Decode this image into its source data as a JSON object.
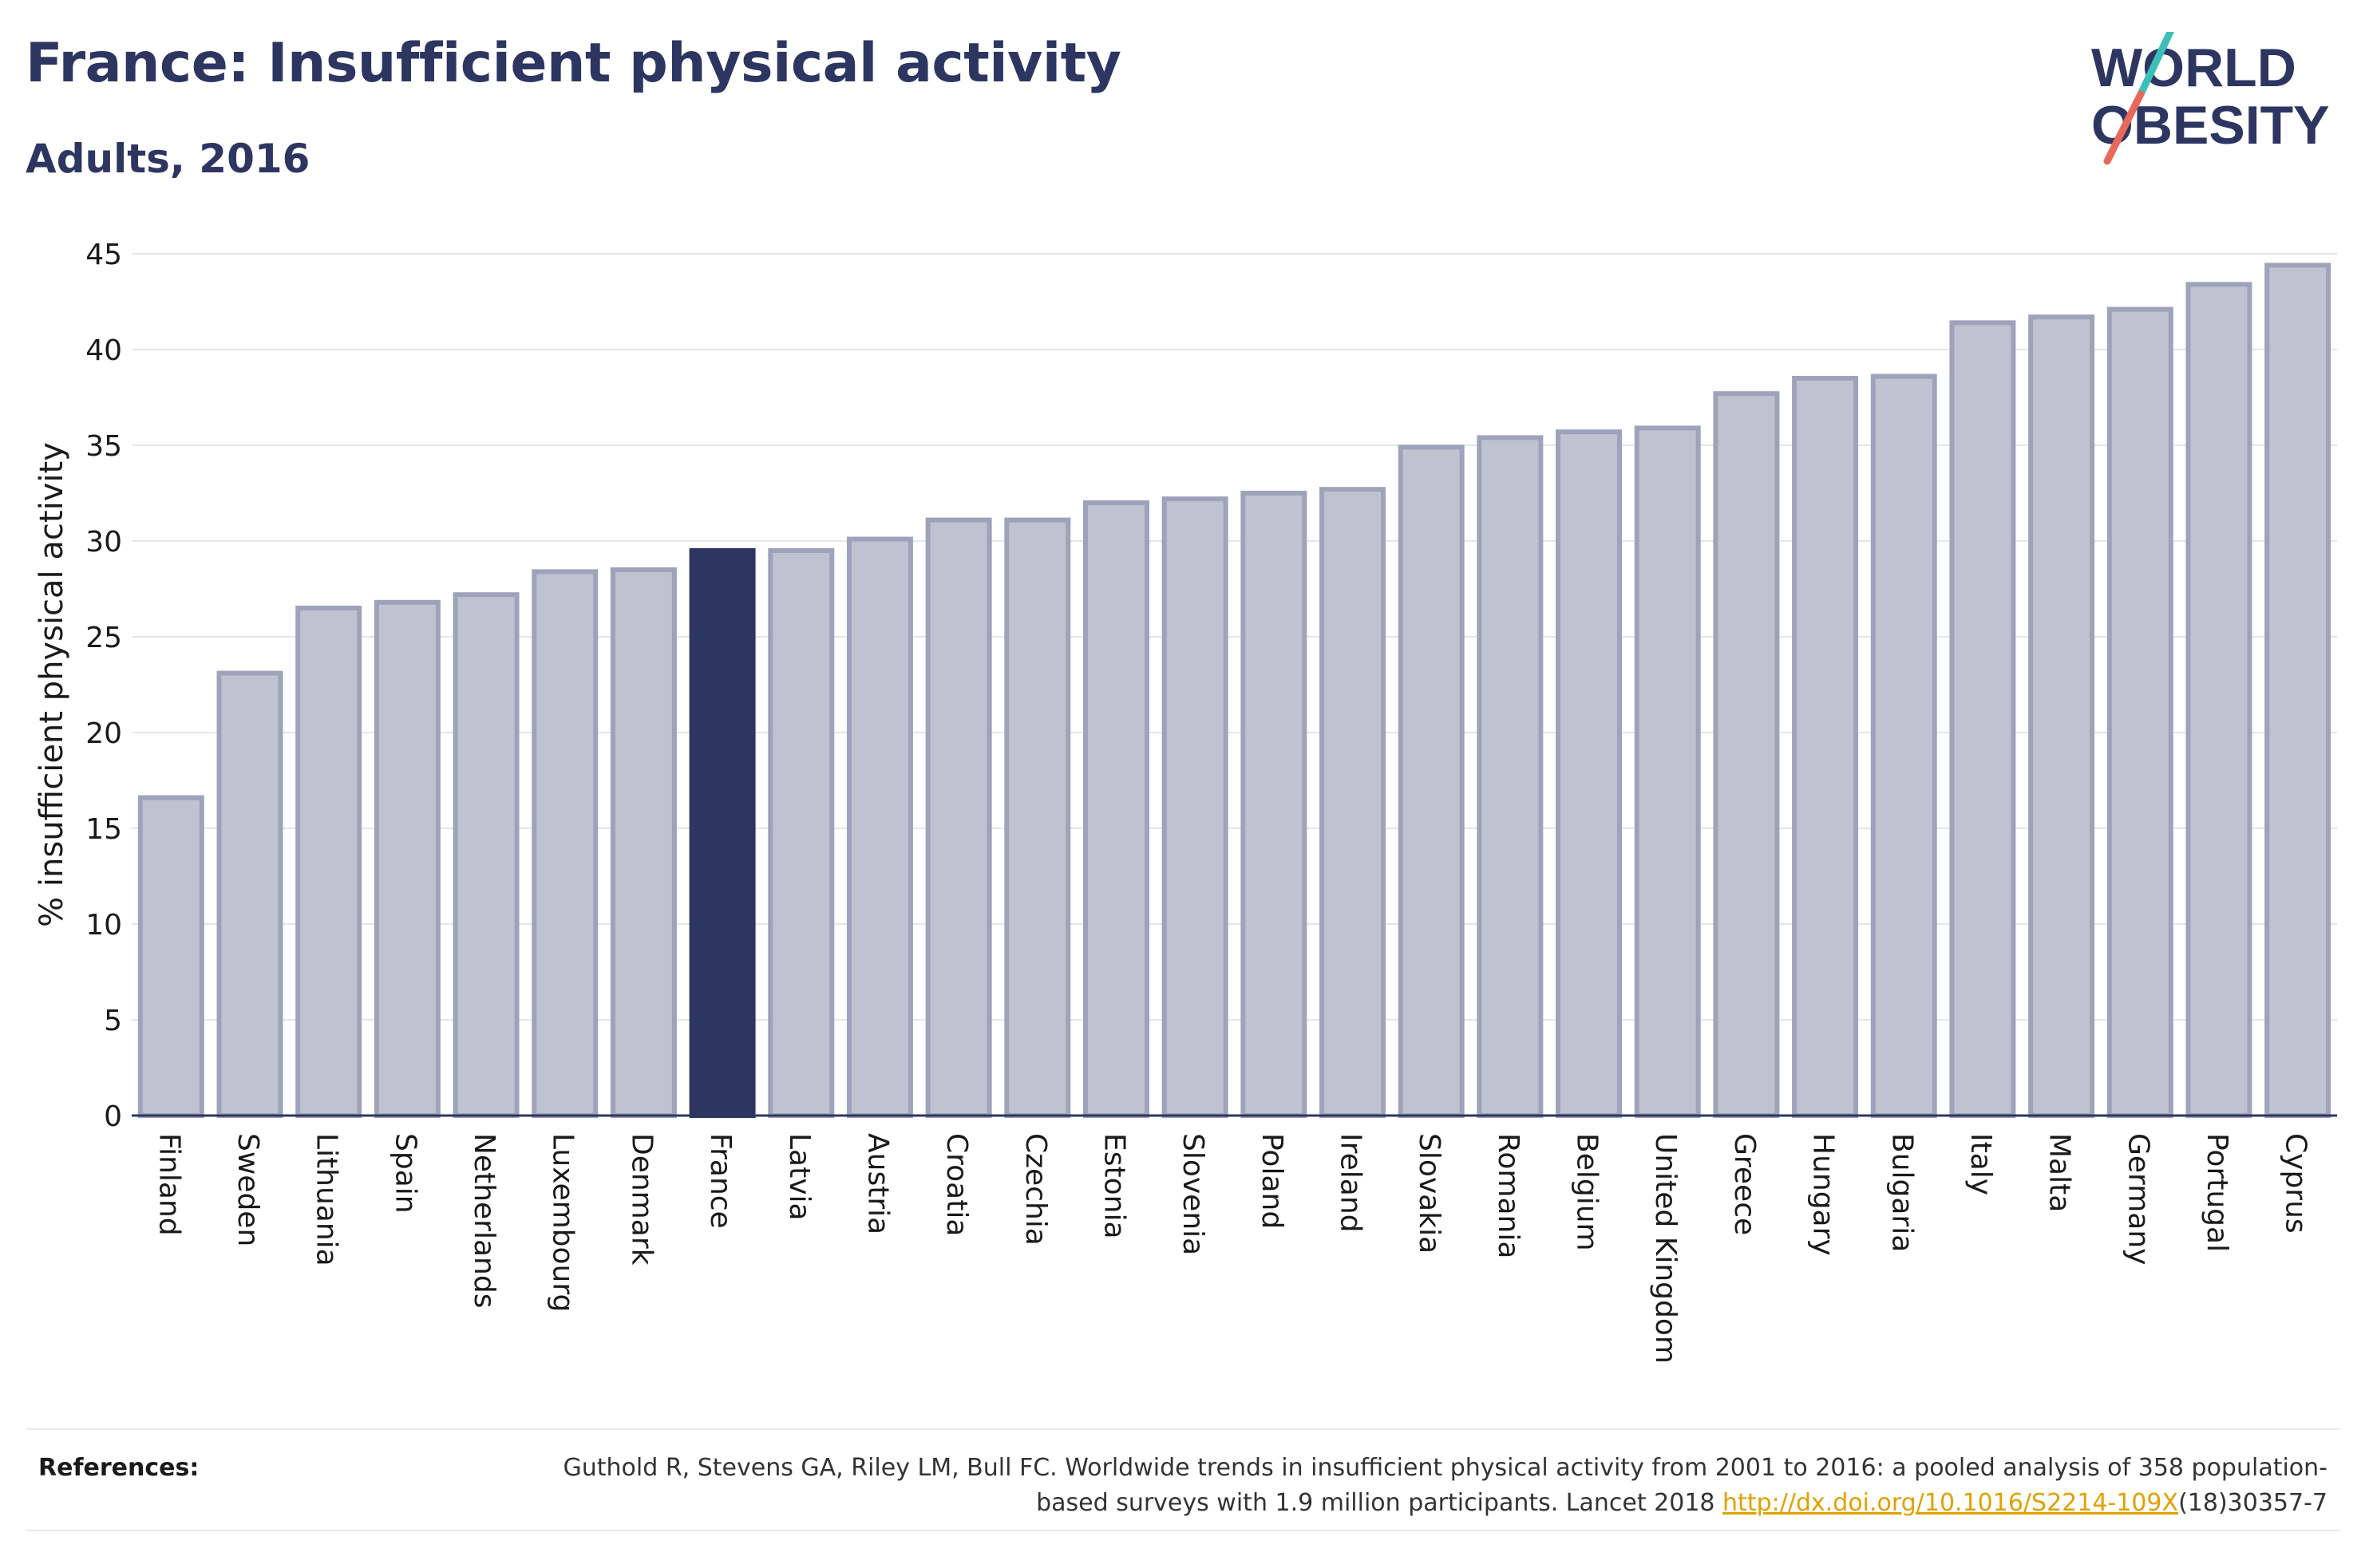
{
  "title": "France: Insufficient physical activity",
  "subtitle": "Adults, 2016",
  "logo": {
    "line1": "WORLD",
    "line2": "OBESITY",
    "accent_teal": "#3bbfb8",
    "accent_coral": "#e8695a",
    "text_color": "#2d3561"
  },
  "colors": {
    "highlight": "#2d3561",
    "bar_fill": "#bfc2d0",
    "bar_stroke": "#9ea3bb"
  },
  "chart_data": {
    "type": "bar",
    "ylabel": "% insufficient physical activity",
    "xlabel": "",
    "ylim": [
      0,
      45
    ],
    "yticks": [
      "0",
      "5",
      "10",
      "15",
      "20",
      "25",
      "30",
      "35",
      "40",
      "45"
    ],
    "grid": true,
    "highlight": "France",
    "categories": [
      "Finland",
      "Sweden",
      "Lithuania",
      "Spain",
      "Netherlands",
      "Luxembourg",
      "Denmark",
      "France",
      "Latvia",
      "Austria",
      "Croatia",
      "Czechia",
      "Estonia",
      "Slovenia",
      "Poland",
      "Ireland",
      "Slovakia",
      "Romania",
      "Belgium",
      "United Kingdom",
      "Greece",
      "Hungary",
      "Bulgaria",
      "Italy",
      "Malta",
      "Germany",
      "Portugal",
      "Cyprus"
    ],
    "values": [
      16.6,
      23.1,
      26.5,
      26.8,
      27.2,
      28.4,
      28.5,
      29.5,
      29.5,
      30.1,
      31.1,
      31.1,
      32.0,
      32.2,
      32.5,
      32.7,
      34.9,
      35.4,
      35.7,
      35.9,
      37.7,
      38.5,
      38.6,
      41.4,
      41.7,
      42.1,
      43.4,
      44.4
    ]
  },
  "references": {
    "label": "References:",
    "text_before": "Guthold R, Stevens GA, Riley LM, Bull FC. Worldwide trends in insufficient physical activity from 2001 to 2016: a pooled analysis of 358 population-based surveys with 1.9 million participants. Lancet 2018 ",
    "link": "http://dx.doi.org/10.1016/S2214-109X",
    "text_after": "(18)30357-7"
  }
}
